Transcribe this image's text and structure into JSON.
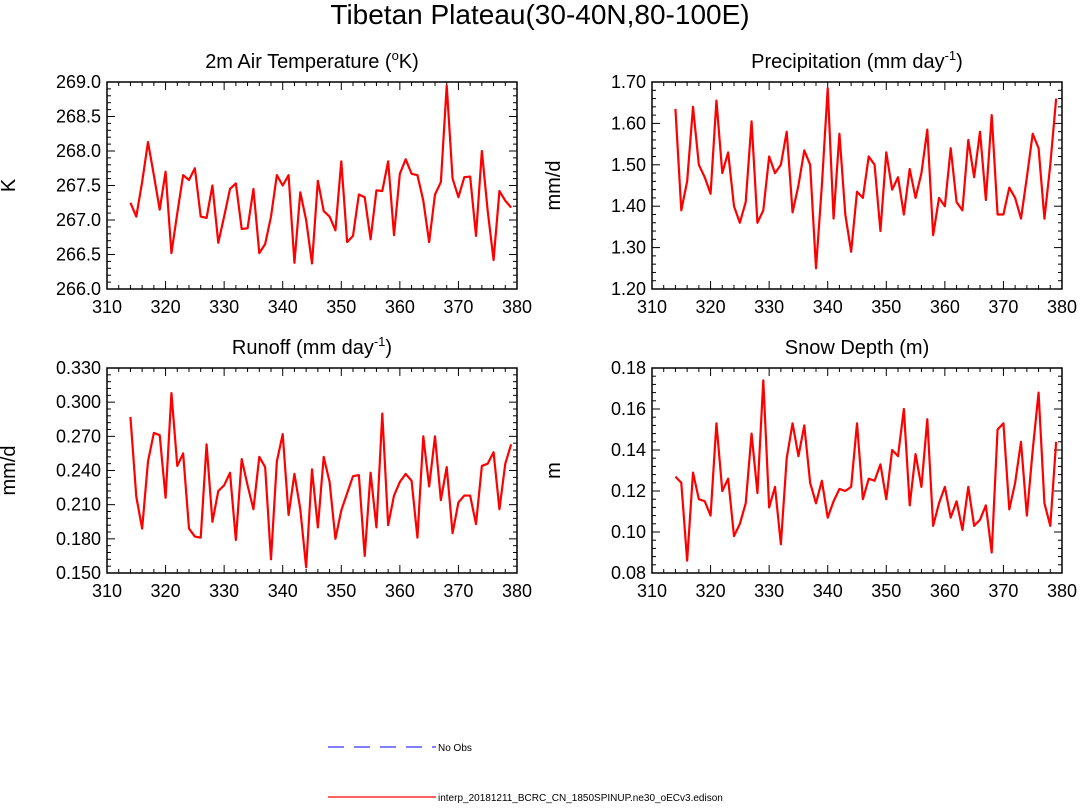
{
  "title": "Tibetan Plateau(30-40N,80-100E)",
  "chart_data": [
    {
      "type": "line",
      "title_main": "2m Air Temperature (",
      "title_sup": "o",
      "title_end": "K)",
      "ylabel": "K",
      "xlim": [
        310,
        380
      ],
      "ylim": [
        266.0,
        269.0
      ],
      "xticks": [
        "310",
        "320",
        "330",
        "340",
        "350",
        "360",
        "370",
        "380"
      ],
      "yticks": [
        "266.0",
        "266.5",
        "267.0",
        "267.5",
        "268.0",
        "268.5",
        "269.0"
      ],
      "series": [
        {
          "name": "interp_20181211_BCRC_CN_1850SPINUP.ne30_oECv3.edison",
          "color": "#ff0000",
          "x_start": 314,
          "values": [
            267.25,
            267.05,
            267.55,
            268.13,
            267.65,
            267.15,
            267.7,
            266.52,
            267.1,
            267.65,
            267.58,
            267.75,
            267.05,
            267.03,
            267.5,
            266.67,
            267.05,
            267.45,
            267.53,
            266.87,
            266.88,
            267.45,
            266.52,
            266.65,
            267.05,
            267.65,
            267.5,
            267.65,
            266.38,
            267.4,
            267.0,
            266.37,
            267.57,
            267.13,
            267.05,
            266.85,
            267.85,
            266.68,
            266.77,
            267.37,
            267.33,
            266.72,
            267.43,
            267.42,
            267.85,
            266.78,
            267.67,
            267.88,
            267.67,
            267.65,
            267.28,
            266.68,
            267.37,
            267.55,
            268.95,
            267.6,
            267.33,
            267.62,
            267.63,
            266.77,
            268.0,
            267.13,
            266.42,
            267.42,
            267.28,
            267.18
          ]
        }
      ]
    },
    {
      "type": "line",
      "title_main": "Precipitation (mm day",
      "title_sup": "-1",
      "title_end": ")",
      "ylabel": "mm/d",
      "xlim": [
        310,
        380
      ],
      "ylim": [
        1.2,
        1.7
      ],
      "xticks": [
        "310",
        "320",
        "330",
        "340",
        "350",
        "360",
        "370",
        "380"
      ],
      "yticks": [
        "1.20",
        "1.30",
        "1.40",
        "1.50",
        "1.60",
        "1.70"
      ],
      "series": [
        {
          "name": "interp_20181211_BCRC_CN_1850SPINUP.ne30_oECv3.edison",
          "color": "#ff0000",
          "x_start": 314,
          "values": [
            1.635,
            1.39,
            1.46,
            1.64,
            1.5,
            1.47,
            1.43,
            1.655,
            1.48,
            1.53,
            1.4,
            1.36,
            1.41,
            1.605,
            1.36,
            1.39,
            1.52,
            1.48,
            1.5,
            1.58,
            1.385,
            1.45,
            1.535,
            1.5,
            1.25,
            1.45,
            1.685,
            1.37,
            1.575,
            1.38,
            1.29,
            1.435,
            1.42,
            1.52,
            1.5,
            1.34,
            1.53,
            1.44,
            1.47,
            1.38,
            1.49,
            1.42,
            1.48,
            1.585,
            1.33,
            1.42,
            1.4,
            1.54,
            1.41,
            1.39,
            1.56,
            1.47,
            1.58,
            1.415,
            1.62,
            1.38,
            1.38,
            1.445,
            1.42,
            1.37,
            1.47,
            1.575,
            1.54,
            1.37,
            1.5,
            1.66
          ]
        }
      ]
    },
    {
      "type": "line",
      "title_main": "Runoff (mm day",
      "title_sup": "-1",
      "title_end": ")",
      "ylabel": "mm/d",
      "xlim": [
        310,
        380
      ],
      "ylim": [
        0.15,
        0.33
      ],
      "xticks": [
        "310",
        "320",
        "330",
        "340",
        "350",
        "360",
        "370",
        "380"
      ],
      "yticks": [
        "0.150",
        "0.180",
        "0.210",
        "0.240",
        "0.270",
        "0.300",
        "0.330"
      ],
      "series": [
        {
          "name": "interp_20181211_BCRC_CN_1850SPINUP.ne30_oECv3.edison",
          "color": "#ff0000",
          "x_start": 314,
          "values": [
            0.287,
            0.217,
            0.189,
            0.248,
            0.273,
            0.271,
            0.216,
            0.308,
            0.244,
            0.255,
            0.189,
            0.182,
            0.181,
            0.263,
            0.195,
            0.222,
            0.227,
            0.238,
            0.179,
            0.25,
            0.227,
            0.206,
            0.252,
            0.243,
            0.162,
            0.248,
            0.272,
            0.201,
            0.237,
            0.206,
            0.155,
            0.241,
            0.19,
            0.252,
            0.23,
            0.18,
            0.205,
            0.22,
            0.235,
            0.236,
            0.165,
            0.238,
            0.19,
            0.29,
            0.192,
            0.218,
            0.23,
            0.237,
            0.231,
            0.181,
            0.27,
            0.226,
            0.27,
            0.214,
            0.243,
            0.185,
            0.212,
            0.218,
            0.218,
            0.193,
            0.244,
            0.246,
            0.256,
            0.206,
            0.246,
            0.263
          ]
        }
      ]
    },
    {
      "type": "line",
      "title_main": "Snow Depth (m)",
      "title_sup": "",
      "title_end": "",
      "ylabel": "m",
      "xlim": [
        310,
        380
      ],
      "ylim": [
        0.08,
        0.18
      ],
      "xticks": [
        "310",
        "320",
        "330",
        "340",
        "350",
        "360",
        "370",
        "380"
      ],
      "yticks": [
        "0.08",
        "0.10",
        "0.12",
        "0.14",
        "0.16",
        "0.18"
      ],
      "series": [
        {
          "name": "interp_20181211_BCRC_CN_1850SPINUP.ne30_oECv3.edison",
          "color": "#ff0000",
          "x_start": 314,
          "values": [
            0.127,
            0.124,
            0.086,
            0.129,
            0.116,
            0.115,
            0.108,
            0.153,
            0.12,
            0.126,
            0.098,
            0.104,
            0.114,
            0.148,
            0.119,
            0.174,
            0.112,
            0.122,
            0.094,
            0.136,
            0.153,
            0.137,
            0.152,
            0.124,
            0.114,
            0.125,
            0.107,
            0.115,
            0.121,
            0.12,
            0.122,
            0.153,
            0.116,
            0.126,
            0.125,
            0.133,
            0.116,
            0.14,
            0.137,
            0.16,
            0.113,
            0.138,
            0.122,
            0.155,
            0.103,
            0.114,
            0.122,
            0.107,
            0.115,
            0.101,
            0.122,
            0.103,
            0.106,
            0.113,
            0.09,
            0.15,
            0.153,
            0.111,
            0.124,
            0.144,
            0.108,
            0.14,
            0.168,
            0.114,
            0.103,
            0.144
          ]
        }
      ]
    }
  ],
  "legend": [
    {
      "label": "No Obs",
      "color": "#3333ff",
      "dash": "dashed"
    },
    {
      "label": "interp_20181211_BCRC_CN_1850SPINUP.ne30_oECv3.edison",
      "color": "#ff0000",
      "dash": "solid"
    }
  ]
}
